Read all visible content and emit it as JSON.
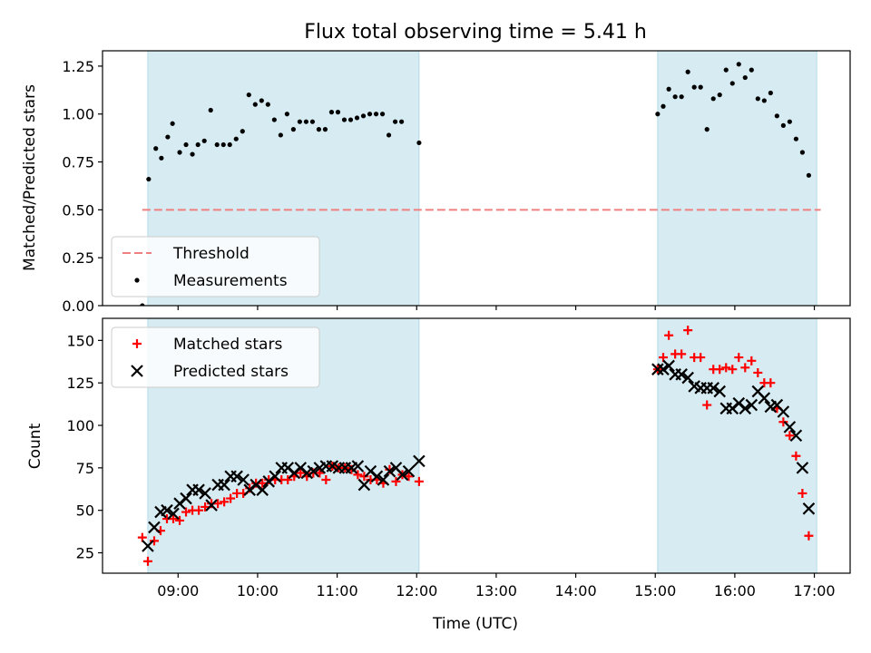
{
  "chart_data": [
    {
      "type": "scatter",
      "title": "Flux total observing time = 5.41 h",
      "ylabel": "Matched/Predicted stars",
      "xlabel": "",
      "xlim": [
        8.05,
        17.45
      ],
      "ylim": [
        0.0,
        1.33
      ],
      "yticks": [
        "0.00",
        "0.25",
        "0.50",
        "0.75",
        "1.00",
        "1.25"
      ],
      "shaded_intervals": [
        [
          8.62,
          12.03
        ],
        [
          15.03,
          17.03
        ]
      ],
      "shade_color": "#add8e6",
      "threshold": {
        "name": "Threshold",
        "value": 0.5,
        "x_range": [
          8.55,
          17.08
        ],
        "color": "#f08080"
      },
      "legend": {
        "location": "lower-left",
        "entries": [
          "Threshold",
          "Measurements"
        ]
      },
      "series": [
        {
          "name": "Measurements",
          "marker": "dot",
          "color": "#000000",
          "points": [
            [
              8.55,
              0.0
            ],
            [
              8.63,
              0.66
            ],
            [
              8.72,
              0.82
            ],
            [
              8.79,
              0.77
            ],
            [
              8.87,
              0.88
            ],
            [
              8.93,
              0.95
            ],
            [
              9.02,
              0.8
            ],
            [
              9.1,
              0.84
            ],
            [
              9.18,
              0.79
            ],
            [
              9.25,
              0.84
            ],
            [
              9.33,
              0.86
            ],
            [
              9.41,
              1.02
            ],
            [
              9.49,
              0.84
            ],
            [
              9.57,
              0.84
            ],
            [
              9.65,
              0.84
            ],
            [
              9.73,
              0.87
            ],
            [
              9.81,
              0.91
            ],
            [
              9.89,
              1.1
            ],
            [
              9.97,
              1.05
            ],
            [
              10.05,
              1.07
            ],
            [
              10.13,
              1.05
            ],
            [
              10.21,
              0.97
            ],
            [
              10.29,
              0.89
            ],
            [
              10.37,
              1.0
            ],
            [
              10.45,
              0.92
            ],
            [
              10.53,
              0.96
            ],
            [
              10.61,
              0.96
            ],
            [
              10.69,
              0.96
            ],
            [
              10.77,
              0.92
            ],
            [
              10.85,
              0.92
            ],
            [
              10.93,
              1.01
            ],
            [
              11.01,
              1.01
            ],
            [
              11.09,
              0.97
            ],
            [
              11.17,
              0.97
            ],
            [
              11.25,
              0.98
            ],
            [
              11.33,
              0.99
            ],
            [
              11.41,
              1.0
            ],
            [
              11.49,
              1.0
            ],
            [
              11.57,
              1.0
            ],
            [
              11.65,
              0.89
            ],
            [
              11.73,
              0.96
            ],
            [
              11.81,
              0.96
            ],
            [
              12.03,
              0.85
            ],
            [
              15.03,
              1.0
            ],
            [
              15.1,
              1.04
            ],
            [
              15.17,
              1.13
            ],
            [
              15.25,
              1.09
            ],
            [
              15.33,
              1.09
            ],
            [
              15.41,
              1.22
            ],
            [
              15.49,
              1.14
            ],
            [
              15.57,
              1.14
            ],
            [
              15.65,
              0.92
            ],
            [
              15.73,
              1.08
            ],
            [
              15.81,
              1.1
            ],
            [
              15.89,
              1.23
            ],
            [
              15.97,
              1.16
            ],
            [
              16.05,
              1.26
            ],
            [
              16.13,
              1.19
            ],
            [
              16.21,
              1.23
            ],
            [
              16.29,
              1.08
            ],
            [
              16.37,
              1.07
            ],
            [
              16.45,
              1.11
            ],
            [
              16.53,
              0.99
            ],
            [
              16.61,
              0.94
            ],
            [
              16.69,
              0.96
            ],
            [
              16.77,
              0.87
            ],
            [
              16.85,
              0.8
            ],
            [
              16.93,
              0.68
            ]
          ]
        }
      ]
    },
    {
      "type": "scatter",
      "title": "",
      "ylabel": "Count",
      "xlabel": "Time (UTC)",
      "xlim": [
        8.05,
        17.45
      ],
      "ylim": [
        13,
        163
      ],
      "yticks": [
        "25",
        "50",
        "75",
        "100",
        "125",
        "150"
      ],
      "xticks": [
        "09:00",
        "10:00",
        "11:00",
        "12:00",
        "13:00",
        "14:00",
        "15:00",
        "16:00",
        "17:00"
      ],
      "shaded_intervals": [
        [
          8.62,
          12.03
        ],
        [
          15.03,
          17.03
        ]
      ],
      "shade_color": "#add8e6",
      "legend": {
        "location": "upper-left",
        "entries": [
          "Matched stars",
          "Predicted stars"
        ]
      },
      "series": [
        {
          "name": "Matched stars",
          "marker": "plus",
          "color": "#ff0000",
          "points": [
            [
              8.55,
              34
            ],
            [
              8.62,
              20
            ],
            [
              8.7,
              32
            ],
            [
              8.78,
              38
            ],
            [
              8.86,
              45
            ],
            [
              8.94,
              45
            ],
            [
              9.02,
              44
            ],
            [
              9.1,
              49
            ],
            [
              9.18,
              50
            ],
            [
              9.26,
              50
            ],
            [
              9.34,
              52
            ],
            [
              9.42,
              54
            ],
            [
              9.5,
              54
            ],
            [
              9.58,
              55
            ],
            [
              9.66,
              57
            ],
            [
              9.74,
              60
            ],
            [
              9.82,
              60
            ],
            [
              9.9,
              63
            ],
            [
              9.98,
              66
            ],
            [
              10.06,
              66
            ],
            [
              10.14,
              68
            ],
            [
              10.22,
              68
            ],
            [
              10.3,
              68
            ],
            [
              10.38,
              68
            ],
            [
              10.46,
              70
            ],
            [
              10.54,
              72
            ],
            [
              10.62,
              70
            ],
            [
              10.7,
              72
            ],
            [
              10.78,
              72
            ],
            [
              10.86,
              68
            ],
            [
              10.94,
              76
            ],
            [
              11.02,
              75
            ],
            [
              11.1,
              75
            ],
            [
              11.18,
              74
            ],
            [
              11.26,
              71
            ],
            [
              11.34,
              70
            ],
            [
              11.42,
              68
            ],
            [
              11.5,
              68
            ],
            [
              11.58,
              66
            ],
            [
              11.66,
              74
            ],
            [
              11.74,
              67
            ],
            [
              11.82,
              71
            ],
            [
              11.9,
              70
            ],
            [
              12.03,
              67
            ],
            [
              15.03,
              133
            ],
            [
              15.1,
              140
            ],
            [
              15.17,
              153
            ],
            [
              15.25,
              142
            ],
            [
              15.33,
              142
            ],
            [
              15.41,
              156
            ],
            [
              15.49,
              140
            ],
            [
              15.57,
              140
            ],
            [
              15.65,
              112
            ],
            [
              15.73,
              133
            ],
            [
              15.81,
              133
            ],
            [
              15.89,
              134
            ],
            [
              15.97,
              133
            ],
            [
              16.05,
              140
            ],
            [
              16.13,
              134
            ],
            [
              16.21,
              138
            ],
            [
              16.29,
              131
            ],
            [
              16.37,
              125
            ],
            [
              16.45,
              125
            ],
            [
              16.53,
              110
            ],
            [
              16.61,
              102
            ],
            [
              16.69,
              94
            ],
            [
              16.77,
              82
            ],
            [
              16.85,
              60
            ],
            [
              16.93,
              35
            ]
          ]
        },
        {
          "name": "Predicted stars",
          "marker": "x",
          "color": "#000000",
          "points": [
            [
              8.62,
              29
            ],
            [
              8.7,
              40
            ],
            [
              8.78,
              49
            ],
            [
              8.86,
              50
            ],
            [
              8.94,
              48
            ],
            [
              9.02,
              54
            ],
            [
              9.1,
              57
            ],
            [
              9.18,
              62
            ],
            [
              9.26,
              62
            ],
            [
              9.34,
              60
            ],
            [
              9.42,
              53
            ],
            [
              9.5,
              65
            ],
            [
              9.58,
              65
            ],
            [
              9.66,
              70
            ],
            [
              9.74,
              70
            ],
            [
              9.82,
              68
            ],
            [
              9.9,
              62
            ],
            [
              9.98,
              65
            ],
            [
              10.06,
              62
            ],
            [
              10.14,
              67
            ],
            [
              10.22,
              70
            ],
            [
              10.3,
              75
            ],
            [
              10.38,
              75
            ],
            [
              10.46,
              72
            ],
            [
              10.54,
              75
            ],
            [
              10.62,
              72
            ],
            [
              10.7,
              73
            ],
            [
              10.78,
              75
            ],
            [
              10.86,
              76
            ],
            [
              10.94,
              76
            ],
            [
              11.02,
              75
            ],
            [
              11.1,
              75
            ],
            [
              11.18,
              75
            ],
            [
              11.26,
              76
            ],
            [
              11.34,
              65
            ],
            [
              11.42,
              73
            ],
            [
              11.5,
              70
            ],
            [
              11.58,
              68
            ],
            [
              11.66,
              73
            ],
            [
              11.74,
              75
            ],
            [
              11.82,
              71
            ],
            [
              11.9,
              73
            ],
            [
              12.03,
              79
            ],
            [
              15.03,
              133
            ],
            [
              15.1,
              133
            ],
            [
              15.17,
              135
            ],
            [
              15.25,
              130
            ],
            [
              15.33,
              130
            ],
            [
              15.41,
              128
            ],
            [
              15.49,
              123
            ],
            [
              15.57,
              122
            ],
            [
              15.65,
              122
            ],
            [
              15.73,
              122
            ],
            [
              15.81,
              120
            ],
            [
              15.89,
              110
            ],
            [
              15.97,
              110
            ],
            [
              16.05,
              113
            ],
            [
              16.13,
              110
            ],
            [
              16.21,
              112
            ],
            [
              16.29,
              120
            ],
            [
              16.37,
              116
            ],
            [
              16.45,
              111
            ],
            [
              16.53,
              112
            ],
            [
              16.61,
              108
            ],
            [
              16.69,
              99
            ],
            [
              16.77,
              94
            ],
            [
              16.85,
              75
            ],
            [
              16.93,
              51
            ]
          ]
        }
      ]
    }
  ]
}
